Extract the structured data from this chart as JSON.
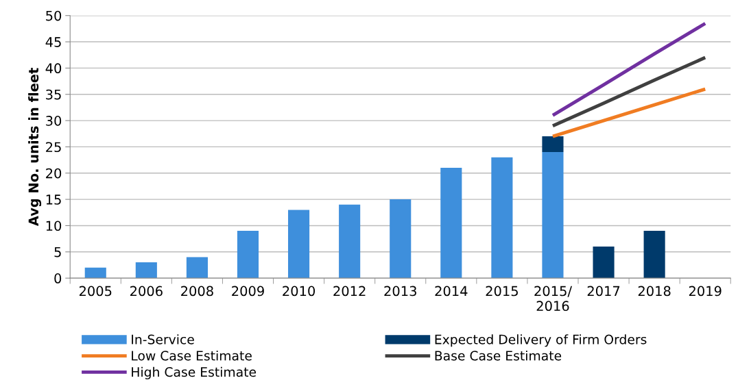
{
  "chart_data": {
    "type": "bar",
    "stacked": true,
    "ylabel": "Avg No. units in fleet",
    "categories": [
      "2005",
      "2006",
      "2008",
      "2009",
      "2010",
      "2012",
      "2013",
      "2014",
      "2015",
      "2015/\n2016",
      "2017",
      "2018",
      "2019"
    ],
    "series": [
      {
        "name": "In-Service",
        "color": "#3e8fdc",
        "values": [
          2,
          3,
          4,
          9,
          13,
          14,
          15,
          21,
          23,
          24,
          null,
          null,
          null
        ]
      },
      {
        "name": "Expected Delivery of Firm Orders",
        "color": "#003a6b",
        "values": [
          null,
          null,
          null,
          null,
          null,
          null,
          null,
          null,
          null,
          3,
          6,
          9,
          null
        ]
      },
      {
        "name": "Low Case Estimate",
        "type": "line",
        "color": "#f07c22",
        "values": [
          null,
          null,
          null,
          null,
          null,
          null,
          null,
          null,
          null,
          27,
          30,
          33,
          36
        ]
      },
      {
        "name": "Base Case Estimate",
        "type": "line",
        "color": "#404040",
        "values": [
          null,
          null,
          null,
          null,
          null,
          null,
          null,
          null,
          null,
          29,
          33.3,
          37.7,
          42
        ]
      },
      {
        "name": "High Case Estimate",
        "type": "line",
        "color": "#7030a0",
        "values": [
          null,
          null,
          null,
          null,
          null,
          null,
          null,
          null,
          null,
          31,
          36.8,
          42.7,
          48.5
        ]
      }
    ],
    "ylim": [
      0,
      50
    ],
    "yticks": [
      0,
      5,
      10,
      15,
      20,
      25,
      30,
      35,
      40,
      45,
      50
    ],
    "grid": "y",
    "legend": "bottom",
    "marker": "none",
    "line_style": "solid"
  }
}
